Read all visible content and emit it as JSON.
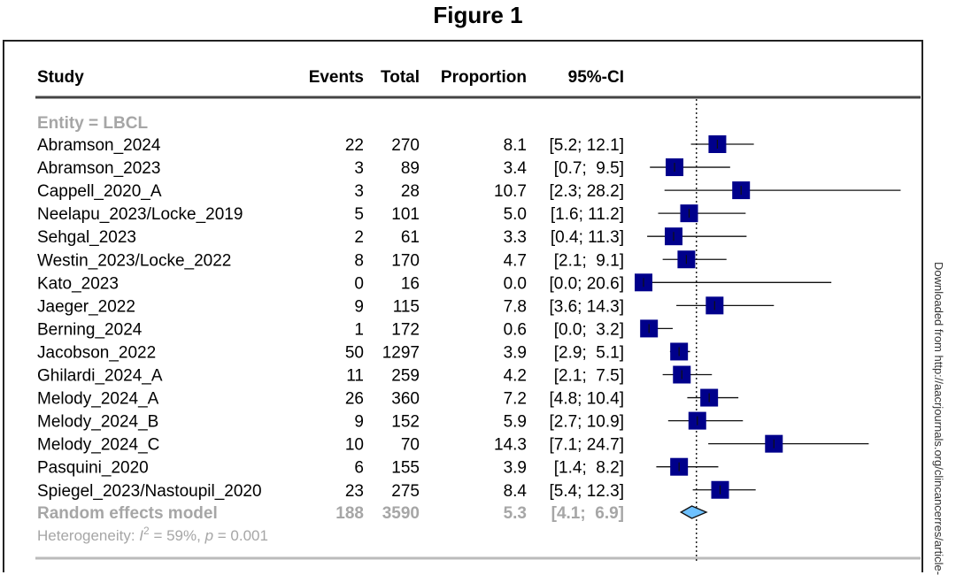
{
  "figure_title": "Figure 1",
  "side_note": "Downloaded from http://aacrjournals.org/clincancerres/article-",
  "chart_data": {
    "type": "forest",
    "columns": [
      "Study",
      "Events",
      "Total",
      "Proportion",
      "95%-CI"
    ],
    "subgroup": "Entity = LBCL",
    "studies": [
      {
        "study": "Abramson_2024",
        "events": 22,
        "total": 270,
        "prop": 8.1,
        "lo": 5.2,
        "hi": 12.1,
        "ci": "[5.2; 12.1]"
      },
      {
        "study": "Abramson_2023",
        "events": 3,
        "total": 89,
        "prop": 3.4,
        "lo": 0.7,
        "hi": 9.5,
        "ci": "[0.7;  9.5]"
      },
      {
        "study": "Cappell_2020_A",
        "events": 3,
        "total": 28,
        "prop": 10.7,
        "lo": 2.3,
        "hi": 28.2,
        "ci": "[2.3; 28.2]"
      },
      {
        "study": "Neelapu_2023/Locke_2019",
        "events": 5,
        "total": 101,
        "prop": 5.0,
        "lo": 1.6,
        "hi": 11.2,
        "ci": "[1.6; 11.2]"
      },
      {
        "study": "Sehgal_2023",
        "events": 2,
        "total": 61,
        "prop": 3.3,
        "lo": 0.4,
        "hi": 11.3,
        "ci": "[0.4; 11.3]"
      },
      {
        "study": "Westin_2023/Locke_2022",
        "events": 8,
        "total": 170,
        "prop": 4.7,
        "lo": 2.1,
        "hi": 9.1,
        "ci": "[2.1;  9.1]"
      },
      {
        "study": "Kato_2023",
        "events": 0,
        "total": 16,
        "prop": 0.0,
        "lo": 0.0,
        "hi": 20.6,
        "ci": "[0.0; 20.6]"
      },
      {
        "study": "Jaeger_2022",
        "events": 9,
        "total": 115,
        "prop": 7.8,
        "lo": 3.6,
        "hi": 14.3,
        "ci": "[3.6; 14.3]"
      },
      {
        "study": "Berning_2024",
        "events": 1,
        "total": 172,
        "prop": 0.6,
        "lo": 0.0,
        "hi": 3.2,
        "ci": "[0.0;  3.2]"
      },
      {
        "study": "Jacobson_2022",
        "events": 50,
        "total": 1297,
        "prop": 3.9,
        "lo": 2.9,
        "hi": 5.1,
        "ci": "[2.9;  5.1]"
      },
      {
        "study": "Ghilardi_2024_A",
        "events": 11,
        "total": 259,
        "prop": 4.2,
        "lo": 2.1,
        "hi": 7.5,
        "ci": "[2.1;  7.5]"
      },
      {
        "study": "Melody_2024_A",
        "events": 26,
        "total": 360,
        "prop": 7.2,
        "lo": 4.8,
        "hi": 10.4,
        "ci": "[4.8; 10.4]"
      },
      {
        "study": "Melody_2024_B",
        "events": 9,
        "total": 152,
        "prop": 5.9,
        "lo": 2.7,
        "hi": 10.9,
        "ci": "[2.7; 10.9]"
      },
      {
        "study": "Melody_2024_C",
        "events": 10,
        "total": 70,
        "prop": 14.3,
        "lo": 7.1,
        "hi": 24.7,
        "ci": "[7.1; 24.7]"
      },
      {
        "study": "Pasquini_2020",
        "events": 6,
        "total": 155,
        "prop": 3.9,
        "lo": 1.4,
        "hi": 8.2,
        "ci": "[1.4;  8.2]"
      },
      {
        "study": "Spiegel_2023/Nastoupil_2020",
        "events": 23,
        "total": 275,
        "prop": 8.4,
        "lo": 5.4,
        "hi": 12.3,
        "ci": "[5.4; 12.3]"
      }
    ],
    "pooled": {
      "label": "Random effects model",
      "events": 188,
      "total": 3590,
      "prop": 5.3,
      "lo": 4.1,
      "hi": 6.9,
      "ci": "[4.1;  6.9]"
    },
    "heterogeneity": {
      "prefix": "Heterogeneity: ",
      "i2_symbol": "I",
      "i2_sup": "2",
      "i2_value": " = 59%, ",
      "p_symbol": "p",
      "p_value": " = 0.001"
    },
    "colors": {
      "square": "#00008B",
      "diamond": "#6EC1FF",
      "summary_text": "#A6A6A6"
    }
  }
}
